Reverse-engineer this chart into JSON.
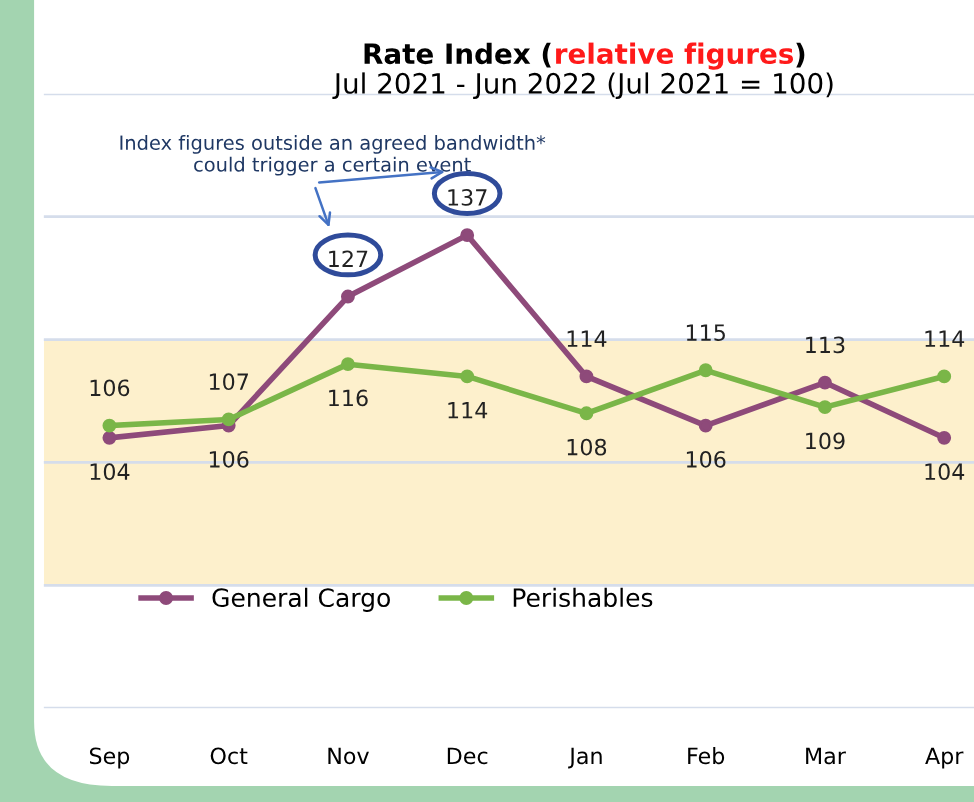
{
  "chart_data": {
    "type": "line",
    "title": "Rate Index (relative figures)",
    "subtitle": "Jul 2021 - Jun 2022 (Jul 2021 = 100)",
    "categories": [
      "Sep",
      "Oct",
      "Nov",
      "Dec",
      "Jan",
      "Feb",
      "Mar",
      "Apr"
    ],
    "series": [
      {
        "name": "General Cargo",
        "color": "#8e4a7a",
        "values": [
          104,
          106,
          127,
          137,
          114,
          106,
          113,
          104
        ]
      },
      {
        "name": "Perishables",
        "color": "#7ab648",
        "values": [
          106,
          107,
          116,
          114,
          108,
          115,
          109,
          114
        ]
      }
    ],
    "ylim": [
      60,
      160
    ],
    "yticks": [
      {
        "value": 60,
        "label": null
      },
      {
        "value": 80,
        "label": null
      },
      {
        "value": 100,
        "label": null
      },
      {
        "value": 120,
        "label": null
      },
      {
        "value": 140,
        "label": null
      },
      {
        "value": 160,
        "label": null
      }
    ],
    "tick_labels": "x",
    "grid": "y",
    "marker": "circle",
    "line_style": "solid",
    "legend": "bottom",
    "data_labels": true,
    "bands": [
      {
        "axis": "y",
        "from": 80,
        "to": 120,
        "color": "#fdf0cc"
      }
    ],
    "annotations": [
      "Index figures outside an agreed bandwidth*\ncould trigger a certain event"
    ]
  }
}
